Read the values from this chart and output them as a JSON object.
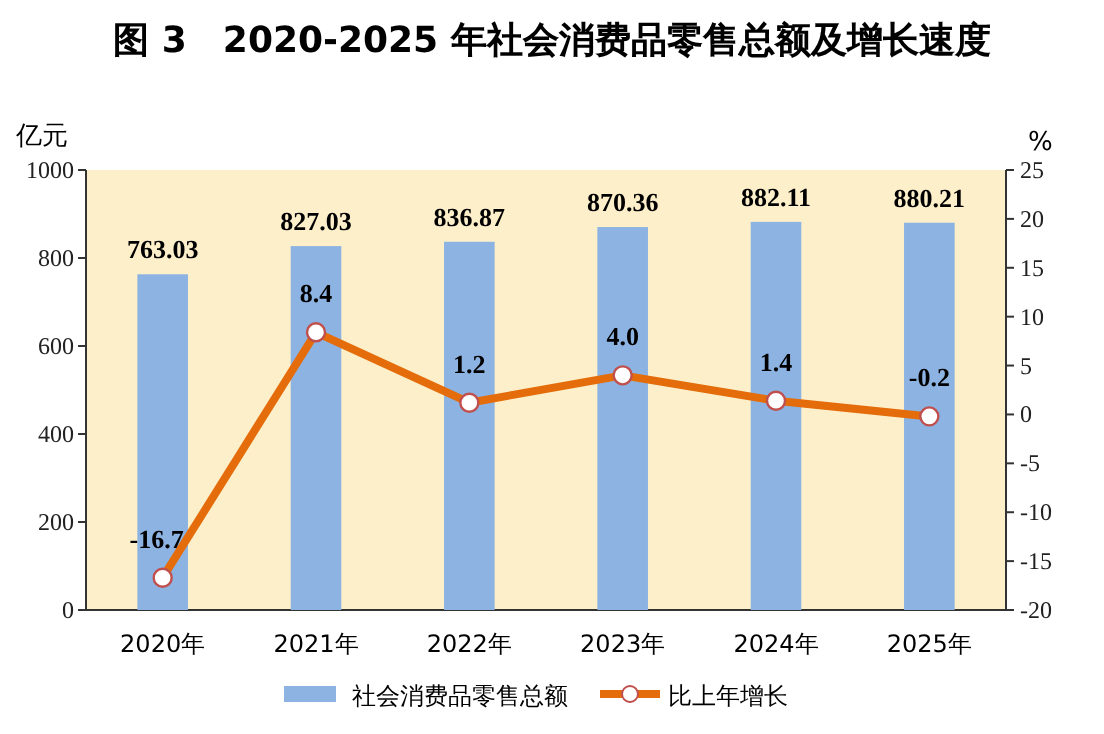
{
  "chart_data": {
    "type": "bar",
    "title": "图 3　2020-2025 年社会消费品零售总额及增长速度",
    "ylabel": "亿元",
    "y2label": "%",
    "categories": [
      "2020年",
      "2021年",
      "2022年",
      "2023年",
      "2024年",
      "2025年"
    ],
    "series": [
      {
        "name": "社会消费品零售总额",
        "color": "#8db3e2",
        "values": [
          763.03,
          827.03,
          836.87,
          870.36,
          882.11,
          880.21
        ]
      },
      {
        "name": "比上年增长",
        "type": "line",
        "axis": "y2",
        "color": "#e46c0a",
        "marker": "circle",
        "values": [
          -16.7,
          8.4,
          1.2,
          4.0,
          1.4,
          -0.2
        ],
        "value_labels": [
          "-16.7",
          "8.4",
          "1.2",
          "4.0",
          "1.4",
          "-0.2"
        ]
      }
    ],
    "ylim": [
      0,
      1000
    ],
    "yticks": [
      0,
      200,
      400,
      600,
      800,
      1000
    ],
    "y2lim": [
      -20,
      25
    ],
    "y2ticks": [
      -20,
      -15,
      -10,
      -5,
      0,
      5,
      10,
      15,
      20,
      25
    ],
    "data_labels": true,
    "legend": "bottom"
  }
}
